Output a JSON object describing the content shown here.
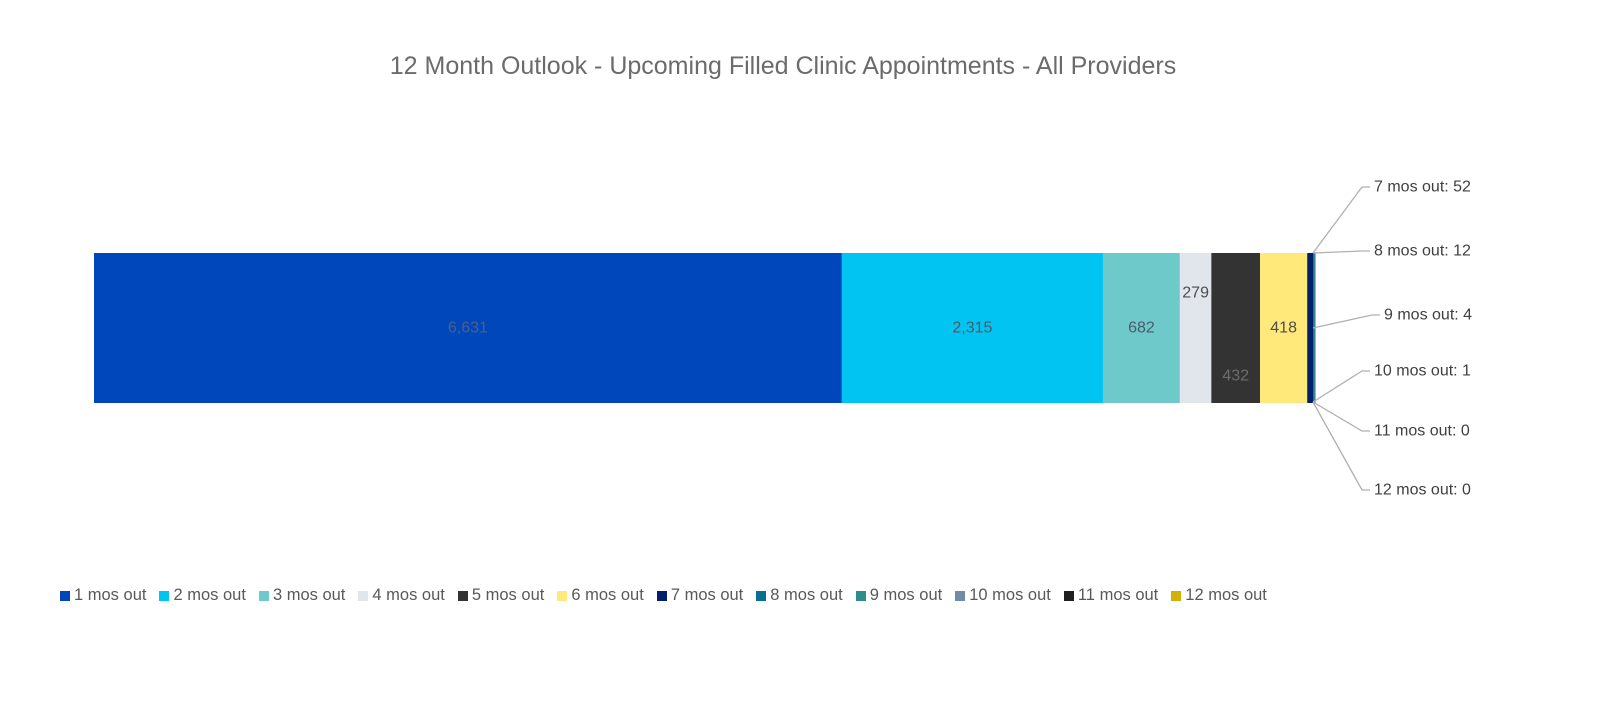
{
  "chart_data": {
    "type": "bar",
    "orientation": "horizontal",
    "stacked": true,
    "title": "12 Month Outlook - Upcoming Filled Clinic Appointments - All Providers",
    "xlabel": "",
    "ylabel": "",
    "grid": false,
    "legend_position": "bottom",
    "series": [
      {
        "name": "1 mos out",
        "value": 6631,
        "label": "6,631",
        "color": "#0047BB",
        "label_color": "#4a5f8a"
      },
      {
        "name": "2 mos out",
        "value": 2315,
        "label": "2,315",
        "color": "#02C4F2",
        "label_color": "#4d5a66"
      },
      {
        "name": "3 mos out",
        "value": 682,
        "label": "682",
        "color": "#6ECACA",
        "label_color": "#4d5a66"
      },
      {
        "name": "4 mos out",
        "value": 279,
        "label": "279",
        "color": "#E1E6EC",
        "label_color": "#4d4d4d"
      },
      {
        "name": "5 mos out",
        "value": 432,
        "label": "432",
        "color": "#333333",
        "label_color": "#6d6d6d"
      },
      {
        "name": "6 mos out",
        "value": 418,
        "label": "418",
        "color": "#FEE97A",
        "label_color": "#4d4d4d"
      },
      {
        "name": "7 mos out",
        "value": 52,
        "label": "7 mos out: 52",
        "color": "#03216B",
        "label_color": "#404040"
      },
      {
        "name": "8 mos out",
        "value": 12,
        "label": "8 mos out: 12",
        "color": "#0A6E91",
        "label_color": "#404040"
      },
      {
        "name": "9 mos out",
        "value": 4,
        "label": "9 mos out: 4",
        "color": "#2F8C8C",
        "label_color": "#404040"
      },
      {
        "name": "10 mos out",
        "value": 1,
        "label": "10 mos out: 1",
        "color": "#6F8BA8",
        "label_color": "#404040"
      },
      {
        "name": "11 mos out",
        "value": 0,
        "label": "11 mos out: 0",
        "color": "#1F1F1F",
        "label_color": "#404040"
      },
      {
        "name": "12 mos out",
        "value": 0,
        "label": "12 mos out: 0",
        "color": "#D4B106",
        "label_color": "#404040"
      }
    ]
  }
}
